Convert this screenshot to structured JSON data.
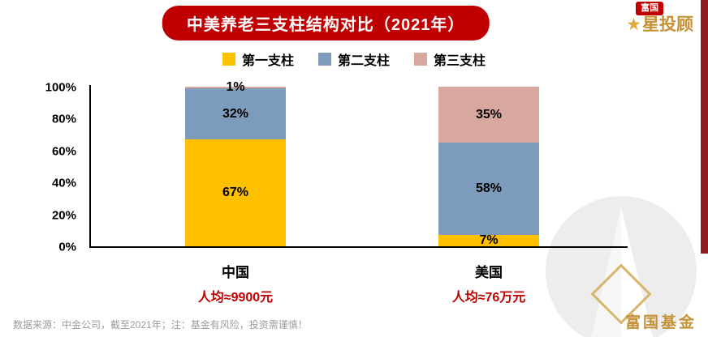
{
  "page": {
    "background": "#FFFFFF",
    "accent_red": "#C00000",
    "stripe_color": "#8E1D22",
    "gold": "#C49238"
  },
  "header": {
    "title": "中美养老三支柱结构对比（2021年）",
    "brand": {
      "badge": "富国",
      "name": "星投顾",
      "star_icon": "★"
    }
  },
  "chart_data": {
    "type": "bar",
    "stacked": true,
    "title": "中美养老三支柱结构对比（2021年）",
    "categories": [
      "中国",
      "美国"
    ],
    "series": [
      {
        "name": "第一支柱",
        "color": "#FFC000",
        "values": [
          67,
          7
        ]
      },
      {
        "name": "第二支柱",
        "color": "#7D9BBA",
        "values": [
          32,
          58
        ]
      },
      {
        "name": "第三支柱",
        "color": "#D7A7A0",
        "values": [
          1,
          35
        ]
      }
    ],
    "value_labels": [
      [
        "67%",
        "32%",
        "1%"
      ],
      [
        "7%",
        "58%",
        "35%"
      ]
    ],
    "yticks": [
      "0%",
      "20%",
      "40%",
      "60%",
      "80%",
      "100%"
    ],
    "ylim": [
      0,
      100
    ],
    "grid": false,
    "legend_position": "top",
    "annotations": [
      {
        "category": "中国",
        "text": "人均≈9900元"
      },
      {
        "category": "美国",
        "text": "人均≈76万元"
      }
    ]
  },
  "footer": {
    "source_note": "数据来源：中金公司，截至2021年；注：基金有风险，投资需谨慎！",
    "watermark_text": "富国基金"
  }
}
